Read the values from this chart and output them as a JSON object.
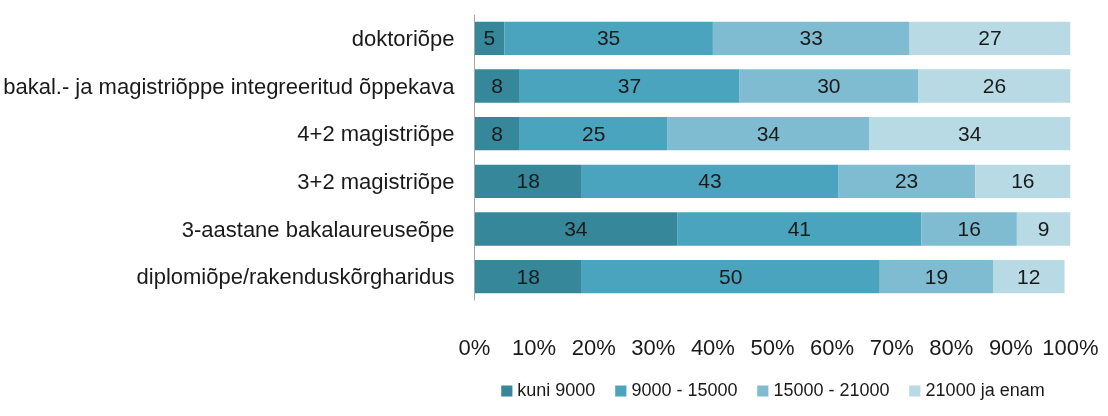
{
  "chart_data": {
    "type": "bar",
    "orientation": "horizontal",
    "stacked": true,
    "categories": [
      "doktoriõpe",
      "bakal.- ja magistriõppe integreeritud õppekava",
      "4+2 magistriõpe",
      "3+2 magistriõpe",
      "3-aastane bakalaureuseõpe",
      "diplomiõpe/rakenduskõrgharidus"
    ],
    "series": [
      {
        "name": "kuni 9000",
        "color": "#37879a",
        "values": [
          5,
          7.6,
          7.6,
          18,
          34,
          18
        ],
        "value_labels": [
          "5",
          "8",
          "8",
          "18",
          "34",
          "18"
        ]
      },
      {
        "name": "9000 - 15000",
        "color": "#4ba4bd",
        "values": [
          35,
          36.8,
          24.8,
          43,
          41,
          50
        ],
        "value_labels": [
          "35",
          "37",
          "25",
          "43",
          "41",
          "50"
        ]
      },
      {
        "name": "15000 - 21000",
        "color": "#80bcd1",
        "values": [
          33,
          30.1,
          33.8,
          23,
          16,
          19
        ],
        "value_labels": [
          "33",
          "30",
          "34",
          "23",
          "16",
          "19"
        ]
      },
      {
        "name": "21000 ja enam",
        "color": "#b8dae5",
        "values": [
          27,
          25.5,
          33.8,
          16,
          9,
          12
        ],
        "value_labels": [
          "27",
          "26",
          "34",
          "16",
          "9",
          "12"
        ]
      }
    ],
    "xlim": [
      0,
      100
    ],
    "xticks": [
      {
        "value": 0,
        "label": "0%"
      },
      {
        "value": 10,
        "label": "10%"
      },
      {
        "value": 20,
        "label": "20%"
      },
      {
        "value": 30,
        "label": "30%"
      },
      {
        "value": 40,
        "label": "40%"
      },
      {
        "value": 50,
        "label": "50%"
      },
      {
        "value": 60,
        "label": "60%"
      },
      {
        "value": 70,
        "label": "70%"
      },
      {
        "value": 80,
        "label": "80%"
      },
      {
        "value": 90,
        "label": "90%"
      },
      {
        "value": 100,
        "label": "100%"
      }
    ],
    "legend": "bottom"
  }
}
